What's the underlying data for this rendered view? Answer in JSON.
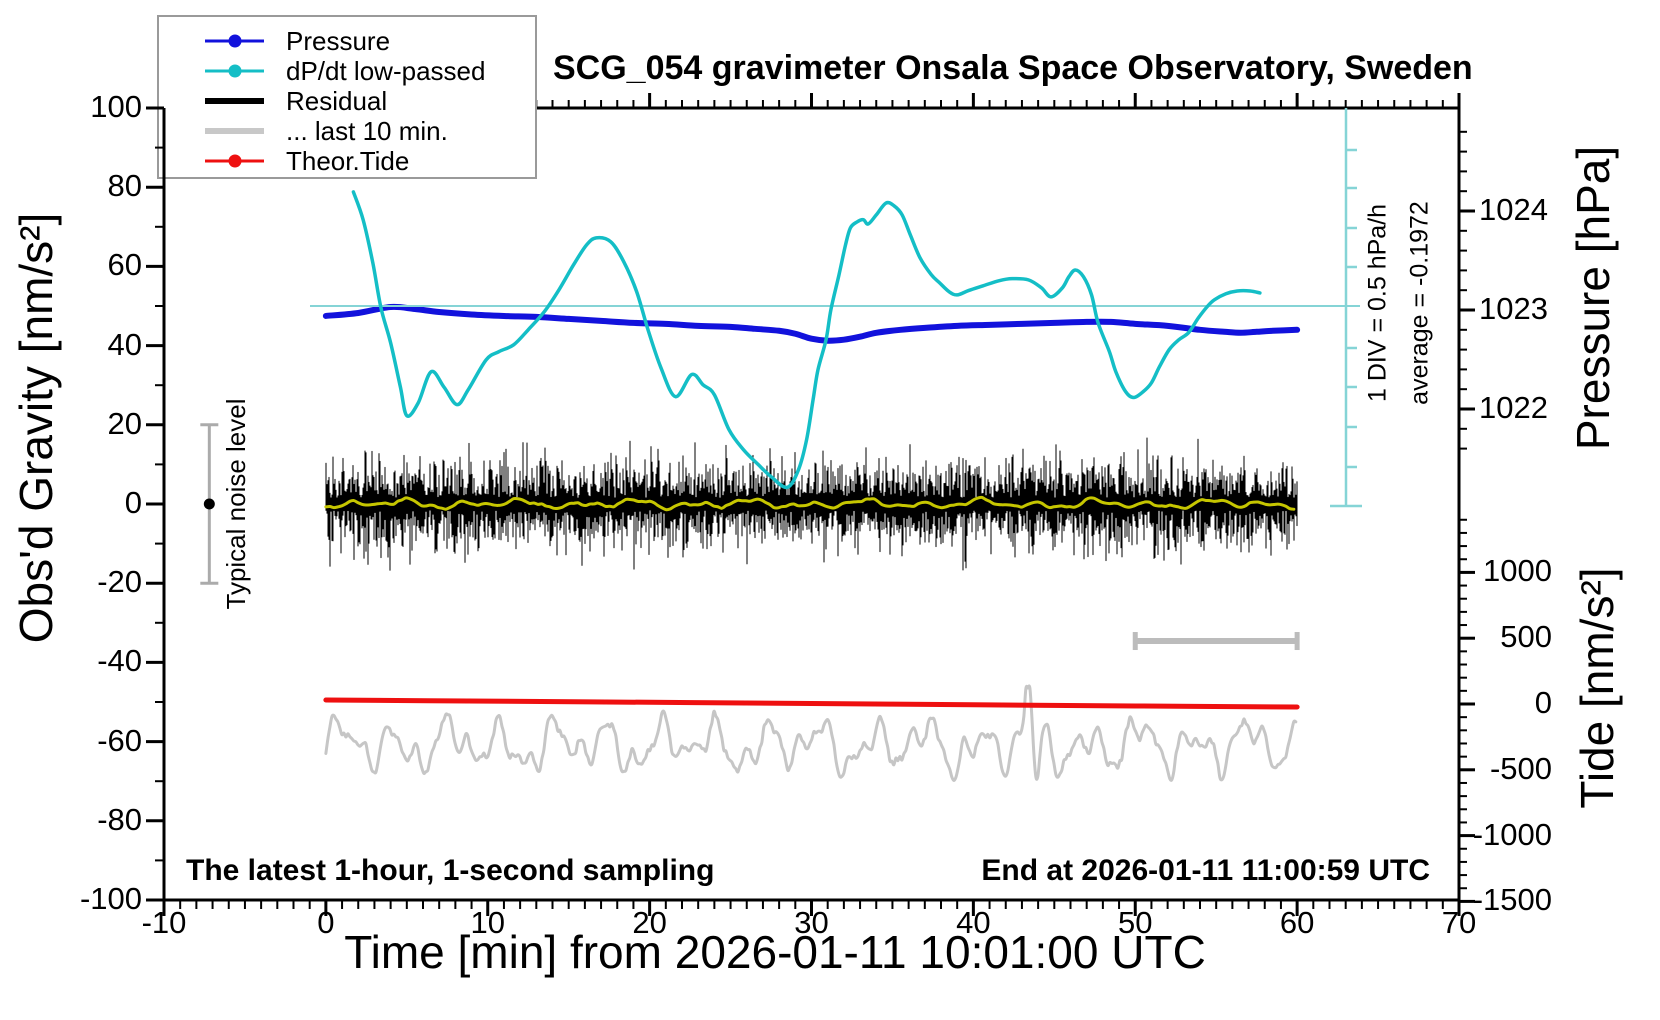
{
  "title": "SCG_054 gravimeter Onsala Space Observatory, Sweden",
  "legend": {
    "items": [
      {
        "label": "Pressure",
        "color": "#1212dc",
        "thickness": 3,
        "dot": true
      },
      {
        "label": "dP/dt low-passed",
        "color": "#14bec6",
        "thickness": 3,
        "dot": true
      },
      {
        "label": "Residual",
        "color": "#000000",
        "thickness": 6,
        "dot": false
      },
      {
        "label": "... last 10 min.",
        "color": "#c8c8c8",
        "thickness": 6,
        "dot": false
      },
      {
        "label": "Theor.Tide",
        "color": "#ee1010",
        "thickness": 3,
        "dot": true
      }
    ]
  },
  "annotations": {
    "sampling_note": "The latest 1-hour, 1-second sampling",
    "end_note": "End at 2026-01-11 11:00:59 UTC",
    "div_scale_note": "1 DIV = 0.5 hPa/h",
    "average_note": "average = -0.1972",
    "noise_note": "Typical noise level"
  },
  "axes": {
    "x": {
      "label": "Time [min] from 2026-01-11 10:01:00 UTC",
      "min": -10,
      "max": 70,
      "major_tick_values": [
        -10,
        0,
        10,
        20,
        30,
        40,
        50,
        60,
        70
      ],
      "major_tick_labels": [
        "-10",
        "0",
        "10",
        "20",
        "30",
        "40",
        "50",
        "60",
        "70"
      ],
      "minor_step": 1
    },
    "y_left": {
      "label": "Obs'd Gravity [nm/s²]",
      "min": -100,
      "max": 100,
      "major_tick_values": [
        -100,
        -80,
        -60,
        -40,
        -20,
        0,
        20,
        40,
        60,
        80,
        100
      ],
      "major_tick_labels": [
        "-100",
        "-80",
        "-60",
        "-40",
        "-20",
        "0",
        "20",
        "40",
        "60",
        "80",
        "100"
      ],
      "minor_step": 10
    },
    "y_pressure": {
      "label": "Pressure [hPa]",
      "major_tick_values": [
        1024,
        1023,
        1022
      ],
      "major_tick_labels": [
        "1024",
        "1023",
        "1022"
      ],
      "minor_step": 0.2,
      "minor_range": [
        1021.6,
        1024.8
      ]
    },
    "y_tide": {
      "label": "Tide [nm/s²]",
      "major_tick_values": [
        1000,
        500,
        0,
        -500,
        -1000,
        -1500
      ],
      "major_tick_labels": [
        "1000",
        "500",
        "0",
        "-500",
        "-1000",
        "-1500"
      ],
      "minor_step": 100,
      "minor_range": [
        -1500,
        1500
      ]
    }
  },
  "chart_data": {
    "type": "line",
    "title": "SCG_054 gravimeter Onsala Space Observatory, Sweden",
    "xlabel": "Time [min] from 2026-01-11 10:01:00 UTC",
    "xlim": [
      -10,
      70
    ],
    "ylabel_left": "Obs'd Gravity [nm/s²]",
    "ylim_left": [
      -100,
      100
    ],
    "ylabel_pressure": "Pressure [hPa]",
    "ylabel_tide": "Tide [nm/s²]",
    "grid": false,
    "legend_position": "top-left",
    "series": [
      {
        "name": "Pressure",
        "units": "hPa vs min",
        "points": [
          [
            0,
            1022.94
          ],
          [
            2,
            1022.97
          ],
          [
            4,
            1023.03
          ],
          [
            5.5,
            1023.01
          ],
          [
            7,
            1022.98
          ],
          [
            9,
            1022.955
          ],
          [
            11,
            1022.94
          ],
          [
            13,
            1022.93
          ],
          [
            15,
            1022.91
          ],
          [
            17,
            1022.89
          ],
          [
            19,
            1022.87
          ],
          [
            21,
            1022.86
          ],
          [
            23,
            1022.84
          ],
          [
            25,
            1022.83
          ],
          [
            26.5,
            1022.81
          ],
          [
            28,
            1022.79
          ],
          [
            29,
            1022.76
          ],
          [
            30,
            1022.71
          ],
          [
            31,
            1022.69
          ],
          [
            32,
            1022.7
          ],
          [
            33,
            1022.73
          ],
          [
            34,
            1022.77
          ],
          [
            35.5,
            1022.8
          ],
          [
            37,
            1022.82
          ],
          [
            39,
            1022.84
          ],
          [
            41,
            1022.85
          ],
          [
            43,
            1022.86
          ],
          [
            45,
            1022.87
          ],
          [
            47,
            1022.88
          ],
          [
            48.5,
            1022.88
          ],
          [
            50,
            1022.86
          ],
          [
            52,
            1022.84
          ],
          [
            54,
            1022.8
          ],
          [
            55.5,
            1022.78
          ],
          [
            56.5,
            1022.77
          ],
          [
            57.5,
            1022.78
          ],
          [
            58.5,
            1022.79
          ],
          [
            60,
            1022.8
          ]
        ]
      },
      {
        "name": "dP/dt low-passed",
        "units": "gravity-axis units; dP/dt [hPa/h] = (g-50)/20, zero line at g=50",
        "zero_line_gravity_units": 50,
        "points_gravity_scale": [
          [
            1.7,
            78.8
          ],
          [
            2.3,
            71.8
          ],
          [
            2.9,
            60.9
          ],
          [
            3.4,
            49.6
          ],
          [
            4.0,
            40.7
          ],
          [
            4.6,
            29.6
          ],
          [
            5.0,
            22.3
          ],
          [
            5.7,
            25.5
          ],
          [
            6.5,
            33.4
          ],
          [
            7.3,
            29.5
          ],
          [
            8.1,
            25.1
          ],
          [
            8.8,
            28.9
          ],
          [
            9.9,
            36.4
          ],
          [
            10.7,
            38.5
          ],
          [
            11.6,
            40.2
          ],
          [
            12.5,
            44.0
          ],
          [
            13.5,
            48.6
          ],
          [
            14.4,
            54.1
          ],
          [
            15.3,
            60.4
          ],
          [
            16.1,
            65.4
          ],
          [
            16.7,
            67.2
          ],
          [
            17.6,
            66.2
          ],
          [
            18.4,
            61.2
          ],
          [
            19.2,
            53.6
          ],
          [
            19.9,
            44.0
          ],
          [
            20.7,
            34.4
          ],
          [
            21.6,
            27.1
          ],
          [
            22.6,
            32.7
          ],
          [
            23.3,
            30.1
          ],
          [
            24.0,
            27.6
          ],
          [
            24.9,
            18.8
          ],
          [
            25.8,
            13.7
          ],
          [
            26.7,
            10.0
          ],
          [
            27.5,
            6.9
          ],
          [
            28.5,
            4.2
          ],
          [
            29.2,
            8.7
          ],
          [
            29.7,
            16.3
          ],
          [
            30.1,
            26.4
          ],
          [
            30.4,
            33.9
          ],
          [
            30.9,
            41.5
          ],
          [
            31.2,
            49.1
          ],
          [
            31.7,
            57.9
          ],
          [
            32.1,
            65.4
          ],
          [
            32.4,
            69.7
          ],
          [
            32.8,
            71.2
          ],
          [
            33.2,
            71.8
          ],
          [
            33.5,
            70.7
          ],
          [
            34.0,
            73.0
          ],
          [
            34.6,
            76.0
          ],
          [
            35.1,
            75.3
          ],
          [
            35.6,
            73.0
          ],
          [
            36.1,
            68.0
          ],
          [
            36.7,
            62.2
          ],
          [
            37.4,
            57.9
          ],
          [
            37.9,
            55.9
          ],
          [
            38.5,
            53.6
          ],
          [
            39.0,
            52.8
          ],
          [
            39.7,
            53.9
          ],
          [
            40.6,
            55.1
          ],
          [
            41.6,
            56.4
          ],
          [
            42.4,
            56.9
          ],
          [
            43.4,
            56.6
          ],
          [
            44.2,
            54.6
          ],
          [
            44.8,
            52.3
          ],
          [
            45.5,
            54.6
          ],
          [
            45.9,
            57.4
          ],
          [
            46.3,
            59.1
          ],
          [
            46.8,
            57.4
          ],
          [
            47.3,
            52.8
          ],
          [
            47.7,
            45.8
          ],
          [
            48.4,
            38.5
          ],
          [
            48.8,
            33.4
          ],
          [
            49.4,
            28.4
          ],
          [
            49.9,
            26.9
          ],
          [
            50.5,
            28.4
          ],
          [
            51.0,
            30.6
          ],
          [
            51.5,
            34.7
          ],
          [
            52.1,
            39.0
          ],
          [
            52.7,
            41.5
          ],
          [
            53.3,
            43.3
          ],
          [
            53.9,
            47.0
          ],
          [
            54.5,
            50.1
          ],
          [
            54.9,
            51.6
          ],
          [
            55.6,
            53.1
          ],
          [
            56.3,
            53.8
          ],
          [
            57.1,
            53.8
          ],
          [
            57.7,
            53.3
          ]
        ],
        "average_hpa_per_h": -0.1972
      },
      {
        "name": "Residual",
        "units": "nm/s² vs min",
        "stochastic": true,
        "mean": 0,
        "typical_band": 6,
        "spike_max": 20,
        "t_range": [
          0,
          60
        ],
        "sampling_s": 1
      },
      {
        "name": "Residual low-passed (yellow)",
        "units": "nm/s² vs min",
        "mean": 0,
        "amplitude": 1.3,
        "t_range": [
          0,
          60
        ]
      },
      {
        "name": "... last 10 min.",
        "units": "gravity-axis units",
        "stochastic": true,
        "center": -61,
        "amplitude": 8,
        "t_range": [
          0,
          60
        ],
        "spike": {
          "t": 43.4,
          "peak": -46.5,
          "trough": -71.5
        }
      },
      {
        "name": "Theor.Tide",
        "units": "tide nm/s² vs min",
        "points": [
          [
            0,
            30
          ],
          [
            10,
            22
          ],
          [
            20,
            13
          ],
          [
            30,
            4
          ],
          [
            40,
            -6
          ],
          [
            50,
            -15
          ],
          [
            60,
            -23
          ]
        ]
      }
    ],
    "markers": {
      "noise_errorbar": {
        "x_min": -7.2,
        "center": 0,
        "half_range": 20
      },
      "ten_min_scalebar": {
        "t0": 50,
        "t1": 60,
        "gravity_level": -34.6
      },
      "dpdt_reference_line_gravity": 50,
      "dpdt_scalebar": {
        "tick_interval_gravity_units": 10,
        "note": "1 DIV = 0.5 hPa/h"
      }
    }
  },
  "colors": {
    "pressure": "#1212dc",
    "dpdt": "#14bec6",
    "dpdt_scale": "#85d4d6",
    "residual": "#000000",
    "residual_lowpass": "#c6c600",
    "last10": "#c6c6c6",
    "tide": "#ee1010",
    "scalebar_gray": "#bcbcbc",
    "noisebar_gray": "#ababab",
    "frame": "#000000"
  }
}
